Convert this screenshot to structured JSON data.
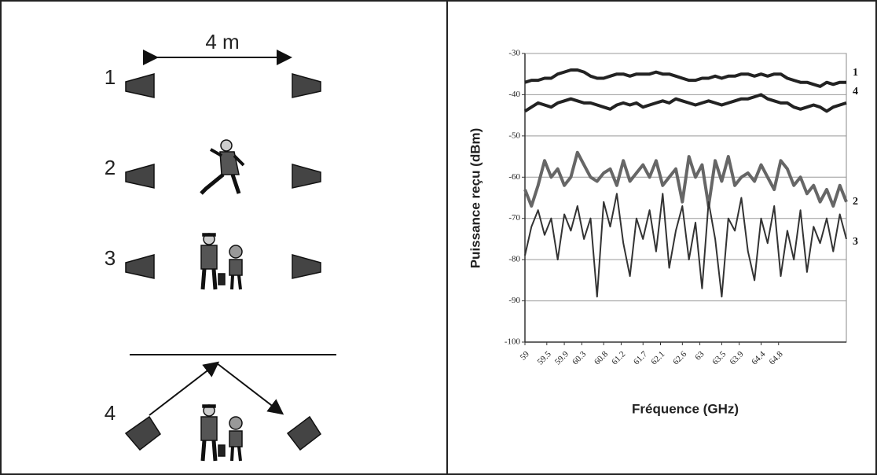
{
  "diagram": {
    "distance": "4 m",
    "scenarios": [
      "1",
      "2",
      "3",
      "4"
    ]
  },
  "chart_data": {
    "type": "line",
    "y_label": "Puissance reçu (dBm)",
    "x_label": "Fréquence (GHz)",
    "x": [
      59,
      59.15,
      59.3,
      59.45,
      59.6,
      59.75,
      59.9,
      60.05,
      60.2,
      60.35,
      60.5,
      60.65,
      60.8,
      60.95,
      61.1,
      61.25,
      61.4,
      61.55,
      61.7,
      61.85,
      62,
      62.15,
      62.3,
      62.45,
      62.6,
      62.75,
      62.9,
      63.05,
      63.2,
      63.35,
      63.5,
      63.65,
      63.8,
      63.95,
      64.1,
      64.25,
      64.4,
      64.55,
      64.7,
      64.85,
      65,
      65.15,
      65.3,
      65.45,
      65.6,
      65.75,
      65.9,
      66.05,
      66.2,
      66.35
    ],
    "xlim": [
      59,
      66.35
    ],
    "xticks": [
      59,
      59.5,
      59.9,
      60.3,
      60.8,
      61.2,
      61.7,
      62.1,
      62.6,
      63,
      63.5,
      63.9,
      64.4,
      64.8
    ],
    "ylim": [
      -100,
      -30
    ],
    "yticks": [
      -100,
      -90,
      -80,
      -70,
      -60,
      -50,
      -40,
      -30
    ],
    "grid": true,
    "series": [
      {
        "name": "1",
        "color": "#222222",
        "width": 4,
        "values": [
          -37,
          -36.5,
          -36.5,
          -36,
          -36,
          -35,
          -34.5,
          -34,
          -34,
          -34.5,
          -35.5,
          -36,
          -36,
          -35.5,
          -35,
          -35,
          -35.5,
          -35,
          -35,
          -35,
          -34.5,
          -35,
          -35,
          -35.5,
          -36,
          -36.5,
          -36.5,
          -36,
          -36,
          -35.5,
          -36,
          -35.5,
          -35.5,
          -35,
          -35,
          -35.5,
          -35,
          -35.5,
          -35,
          -35,
          -36,
          -36.5,
          -37,
          -37,
          -37.5,
          -38,
          -37,
          -37.5,
          -37,
          -37
        ]
      },
      {
        "name": "4",
        "color": "#222222",
        "width": 4,
        "values": [
          -44,
          -43,
          -42,
          -42.5,
          -43,
          -42,
          -41.5,
          -41,
          -41.5,
          -42,
          -42,
          -42.5,
          -43,
          -43.5,
          -42.5,
          -42,
          -42.5,
          -42,
          -43,
          -42.5,
          -42,
          -41.5,
          -42,
          -41,
          -41.5,
          -42,
          -42.5,
          -42,
          -41.5,
          -42,
          -42.5,
          -42,
          -41.5,
          -41,
          -41,
          -40.5,
          -40,
          -41,
          -41.5,
          -42,
          -42,
          -43,
          -43.5,
          -43,
          -42.5,
          -43,
          -44,
          -43,
          -42.5,
          -42
        ]
      },
      {
        "name": "2",
        "color": "#666666",
        "width": 4,
        "values": [
          -63,
          -67,
          -62,
          -56,
          -60,
          -58,
          -62,
          -60,
          -54,
          -57,
          -60,
          -61,
          -59,
          -58,
          -62,
          -56,
          -61,
          -59,
          -57,
          -60,
          -56,
          -62,
          -60,
          -58,
          -66,
          -55,
          -60,
          -57,
          -67,
          -56,
          -61,
          -55,
          -62,
          -60,
          -59,
          -61,
          -57,
          -60,
          -63,
          -56,
          -58,
          -62,
          -60,
          -64,
          -62,
          -66,
          -63,
          -67,
          -62,
          -66
        ]
      },
      {
        "name": "3",
        "color": "#333333",
        "width": 2,
        "values": [
          -79,
          -72,
          -68,
          -74,
          -70,
          -80,
          -69,
          -73,
          -67,
          -75,
          -70,
          -89,
          -66,
          -72,
          -64,
          -76,
          -84,
          -70,
          -75,
          -68,
          -78,
          -64,
          -82,
          -73,
          -67,
          -80,
          -71,
          -87,
          -66,
          -75,
          -89,
          -70,
          -73,
          -65,
          -78,
          -85,
          -70,
          -76,
          -67,
          -84,
          -73,
          -80,
          -68,
          -83,
          -72,
          -76,
          -70,
          -78,
          -69,
          -75
        ]
      }
    ]
  }
}
